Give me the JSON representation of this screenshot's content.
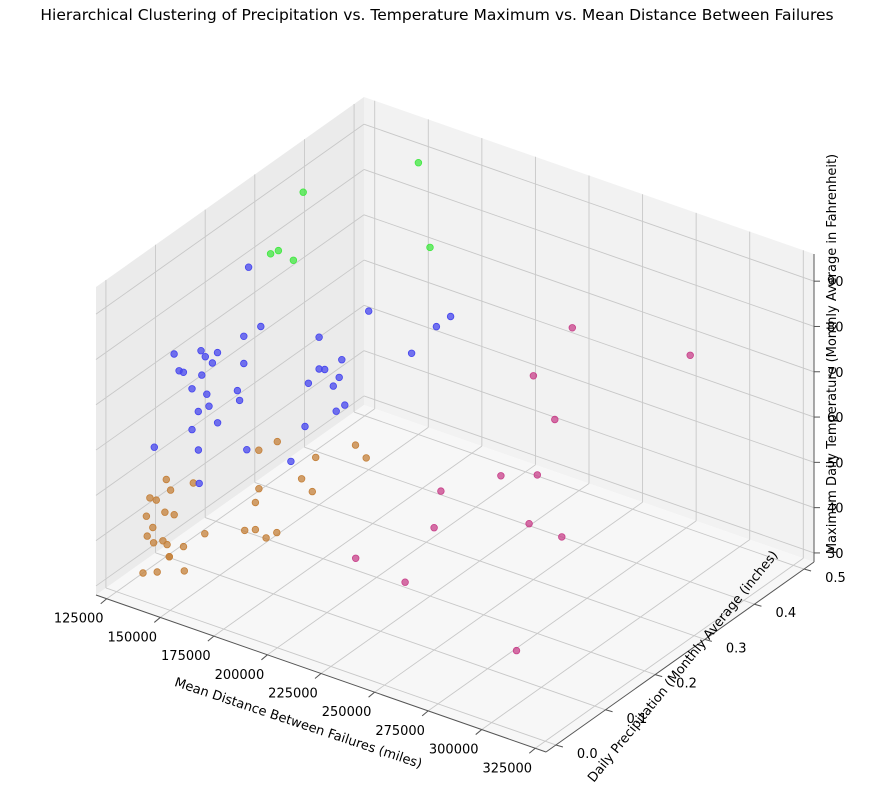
{
  "chart_data": {
    "type": "scatter",
    "projection": "3d",
    "title": "Hierarchical Clustering of Precipitation vs. Temperature Maximum vs. Mean Distance Between Failures",
    "xlabel": "Mean Distance Between Failures (miles)",
    "ylabel": "Daily Precipitation (Monthly Average (inches)",
    "zlabel": "Maximum Daily Temperature (Monthly Average in Fahrenheit)",
    "xlim": [
      120000,
      330000
    ],
    "ylim": [
      -0.02,
      0.52
    ],
    "zlim": [
      28,
      96
    ],
    "xticks": [
      125000,
      150000,
      175000,
      200000,
      225000,
      250000,
      275000,
      300000,
      325000
    ],
    "xtick_labels": [
      "125000",
      "150000",
      "175000",
      "200000",
      "225000",
      "250000",
      "275000",
      "300000",
      "325000"
    ],
    "yticks": [
      0.0,
      0.1,
      0.2,
      0.3,
      0.4,
      0.5
    ],
    "ytick_labels": [
      "0.0",
      "0.1",
      "0.2",
      "0.3",
      "0.4",
      "0.5"
    ],
    "zticks": [
      30,
      40,
      50,
      60,
      70,
      80,
      90
    ],
    "ztick_labels": [
      "30",
      "40",
      "50",
      "60",
      "70",
      "80",
      "90"
    ],
    "grid": true,
    "colors": {
      "green": "#40e840",
      "blue": "#4545ee",
      "orange": "#c4803a",
      "pink": "#c8408a"
    },
    "series": [
      {
        "color": "green",
        "points": [
          [
            132000,
            0.28,
            82
          ],
          [
            131000,
            0.3,
            81
          ],
          [
            138000,
            0.3,
            80
          ],
          [
            131000,
            0.35,
            90
          ],
          [
            150000,
            0.5,
            88
          ],
          [
            167000,
            0.45,
            76
          ]
        ]
      },
      {
        "color": "blue",
        "points": [
          [
            128000,
            0.18,
            65
          ],
          [
            125000,
            0.17,
            68
          ],
          [
            127000,
            0.17,
            67
          ],
          [
            131000,
            0.1,
            70
          ],
          [
            133000,
            0.1,
            70
          ],
          [
            124000,
            0.12,
            71
          ],
          [
            135000,
            0.16,
            70
          ],
          [
            138000,
            0.2,
            71
          ],
          [
            139000,
            0.23,
            71
          ],
          [
            137000,
            0.1,
            67
          ],
          [
            130000,
            0.15,
            65
          ],
          [
            138000,
            0.2,
            65
          ],
          [
            142000,
            0.17,
            62
          ],
          [
            130000,
            0.16,
            60
          ],
          [
            131000,
            0.05,
            57
          ],
          [
            133000,
            0.13,
            59
          ],
          [
            137000,
            0.1,
            58
          ],
          [
            138000,
            0.13,
            61
          ],
          [
            150000,
            0.3,
            65
          ],
          [
            150000,
            0.4,
            63
          ],
          [
            150000,
            0.3,
            58
          ],
          [
            148000,
            0.32,
            56
          ],
          [
            145000,
            0.3,
            54
          ],
          [
            149000,
            0.35,
            56
          ],
          [
            152000,
            0.32,
            53
          ],
          [
            140000,
            0.1,
            54
          ],
          [
            142000,
            0.13,
            58
          ],
          [
            143000,
            0.17,
            60
          ],
          [
            155000,
            0.25,
            50
          ],
          [
            158000,
            0.3,
            50
          ],
          [
            162000,
            0.3,
            52
          ],
          [
            151000,
            0.15,
            52
          ],
          [
            164000,
            0.28,
            60
          ],
          [
            145000,
            0.08,
            49
          ],
          [
            160000,
            0.2,
            47
          ],
          [
            170000,
            0.4,
            57
          ],
          [
            170000,
            0.45,
            59
          ],
          [
            172000,
            0.47,
            60
          ],
          [
            131000,
            0.24,
            82
          ]
        ]
      },
      {
        "color": "orange",
        "points": [
          [
            125000,
            0.1,
            45
          ],
          [
            122000,
            0.08,
            42
          ],
          [
            125000,
            0.08,
            42
          ],
          [
            127000,
            0.1,
            43
          ],
          [
            125000,
            0.06,
            40
          ],
          [
            130000,
            0.04,
            38
          ],
          [
            129000,
            0.08,
            40
          ],
          [
            133000,
            0.12,
            44
          ],
          [
            131000,
            0.09,
            39
          ],
          [
            143000,
            0.1,
            36
          ],
          [
            150000,
            0.15,
            34
          ],
          [
            155000,
            0.15,
            35
          ],
          [
            152000,
            0.17,
            42
          ],
          [
            149000,
            0.22,
            48
          ],
          [
            138000,
            0.05,
            34
          ],
          [
            140000,
            0.07,
            35
          ],
          [
            145000,
            0.05,
            32
          ],
          [
            128000,
            0.06,
            38
          ],
          [
            133000,
            0.04,
            37
          ],
          [
            135000,
            0.05,
            37
          ],
          [
            137000,
            0.03,
            32
          ],
          [
            160000,
            0.15,
            34
          ],
          [
            165000,
            0.15,
            36
          ],
          [
            135000,
            0.01,
            33
          ],
          [
            138000,
            0.05,
            34
          ],
          [
            167000,
            0.3,
            44
          ],
          [
            172000,
            0.3,
            42
          ],
          [
            165000,
            0.2,
            44
          ],
          [
            160000,
            0.25,
            44
          ],
          [
            155000,
            0.15,
            41
          ],
          [
            170000,
            0.2,
            42
          ],
          [
            145000,
            0.2,
            47
          ],
          [
            130000,
            0.08,
            33
          ]
        ]
      },
      {
        "color": "pink",
        "points": [
          [
            250000,
            0.3,
            73
          ],
          [
            245000,
            0.4,
            75
          ],
          [
            300000,
            0.4,
            78
          ],
          [
            260000,
            0.3,
            65
          ],
          [
            275000,
            0.2,
            63
          ],
          [
            258000,
            0.2,
            60
          ],
          [
            298000,
            0.15,
            57
          ],
          [
            250000,
            0.1,
            55
          ],
          [
            230000,
            0.2,
            52
          ],
          [
            255000,
            0.02,
            50
          ],
          [
            248000,
            0.3,
            40
          ],
          [
            300000,
            0.05,
            40
          ],
          [
            225000,
            0.05,
            48
          ]
        ]
      }
    ]
  }
}
